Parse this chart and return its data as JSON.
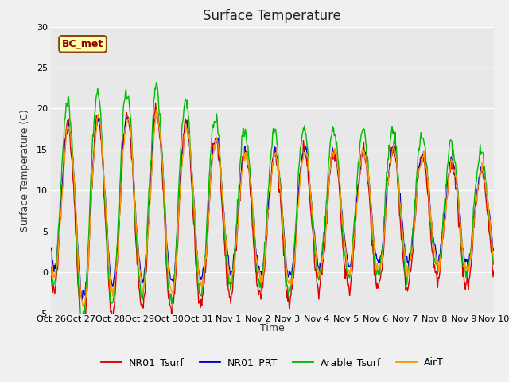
{
  "title": "Surface Temperature",
  "ylabel": "Surface Temperature (C)",
  "xlabel": "Time",
  "ylim": [
    -5,
    30
  ],
  "yticks": [
    -5,
    0,
    5,
    10,
    15,
    20,
    25,
    30
  ],
  "fig_bg_color": "#f0f0f0",
  "plot_bg_color": "#e8e8e8",
  "annotation_text": "BC_met",
  "annotation_bg": "#ffffaa",
  "annotation_border": "#8b4513",
  "line_colors": {
    "NR01_Tsurf": "#dd0000",
    "NR01_PRT": "#0000cc",
    "Arable_Tsurf": "#00bb00",
    "AirT": "#ff9900"
  },
  "line_width": 1.0,
  "xtick_labels": [
    "Oct 26",
    "Oct 27",
    "Oct 28",
    "Oct 29",
    "Oct 30",
    "Oct 31",
    "Nov 1",
    "Nov 2",
    "Nov 3",
    "Nov 4",
    "Nov 5",
    "Nov 6",
    "Nov 7",
    "Nov 8",
    "Nov 9",
    "Nov 10"
  ],
  "title_fontsize": 12,
  "axis_label_fontsize": 9,
  "tick_fontsize": 8,
  "legend_fontsize": 9,
  "grid_color": "#ffffff",
  "grid_linewidth": 1.0
}
